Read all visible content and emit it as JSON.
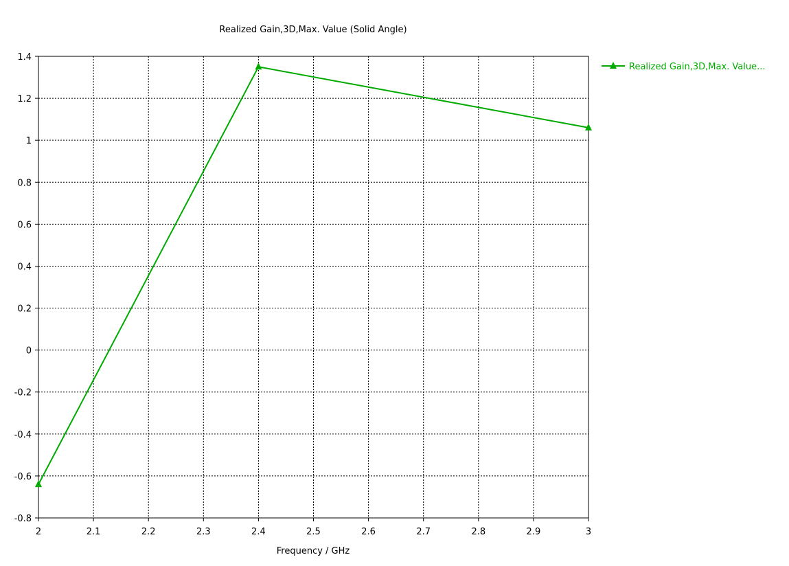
{
  "chart_data": {
    "type": "line",
    "title": "Realized Gain,3D,Max. Value (Solid Angle)",
    "xlabel": "Frequency / GHz",
    "ylabel": "",
    "xlim": [
      2,
      3
    ],
    "ylim": [
      -0.8,
      1.4
    ],
    "x_ticks": [
      2,
      2.1,
      2.2,
      2.3,
      2.4,
      2.5,
      2.6,
      2.7,
      2.8,
      2.9,
      3
    ],
    "x_tick_labels": [
      "2",
      "2.1",
      "2.2",
      "2.3",
      "2.4",
      "2.5",
      "2.6",
      "2.7",
      "2.8",
      "2.9",
      "3"
    ],
    "y_ticks": [
      -0.8,
      -0.6,
      -0.4,
      -0.2,
      0,
      0.2,
      0.4,
      0.6,
      0.8,
      1,
      1.2,
      1.4
    ],
    "y_tick_labels": [
      "-0.8",
      "-0.6",
      "-0.4",
      "-0.2",
      "0",
      "0.2",
      "0.4",
      "0.6",
      "0.8",
      "1",
      "1.2",
      "1.4"
    ],
    "grid": true,
    "legend_position": "top-right-outside",
    "series": [
      {
        "name": "Realized Gain,3D,Max. Value...",
        "color": "#00aa00",
        "marker": "triangle",
        "x": [
          2,
          2.4,
          3
        ],
        "y": [
          -0.64,
          1.35,
          1.06
        ]
      }
    ]
  }
}
